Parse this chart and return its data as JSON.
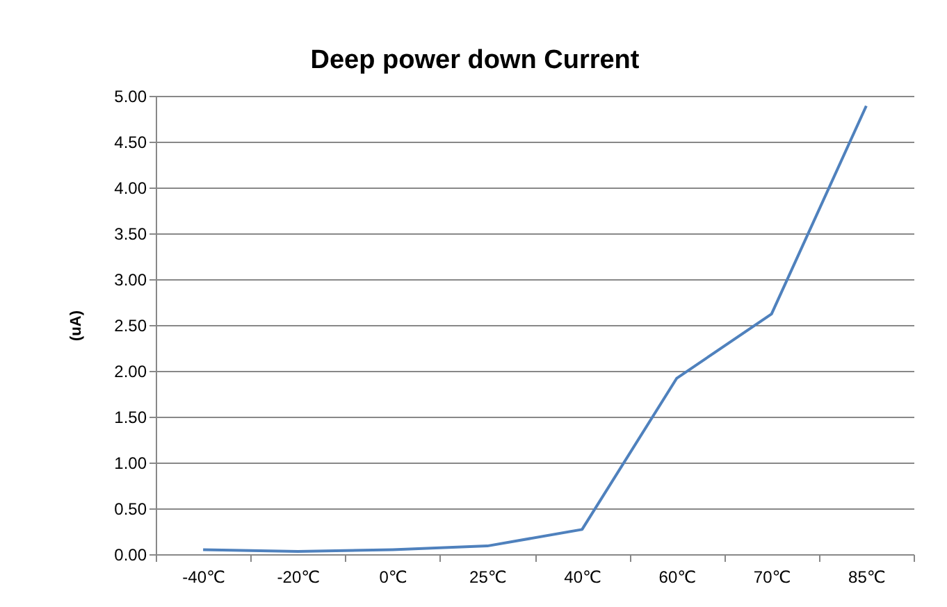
{
  "chart_data": {
    "type": "line",
    "title": "Deep power down Current",
    "ylabel": "(uA)",
    "categories": [
      "-40℃",
      "-20℃",
      "0℃",
      "25℃",
      "40℃",
      "60℃",
      "70℃",
      "85℃"
    ],
    "series": [
      {
        "color": "#4f81bd",
        "values": [
          0.05,
          0.03,
          0.05,
          0.09,
          0.27,
          1.92,
          2.62,
          4.89
        ]
      }
    ],
    "ylim": [
      0,
      5
    ],
    "yticks": [
      {
        "value": 0,
        "label": "0.00"
      },
      {
        "value": 0.5,
        "label": "0.50"
      },
      {
        "value": 1,
        "label": "1.00"
      },
      {
        "value": 1.5,
        "label": "1.50"
      },
      {
        "value": 2,
        "label": "2.00"
      },
      {
        "value": 2.5,
        "label": "2.50"
      },
      {
        "value": 3,
        "label": "3.00"
      },
      {
        "value": 3.5,
        "label": "3.50"
      },
      {
        "value": 4,
        "label": "4.00"
      },
      {
        "value": 4.5,
        "label": "4.50"
      },
      {
        "value": 5,
        "label": "5.00"
      }
    ],
    "grid": "y",
    "legend": false,
    "marker": "none",
    "line_style": "solid"
  }
}
